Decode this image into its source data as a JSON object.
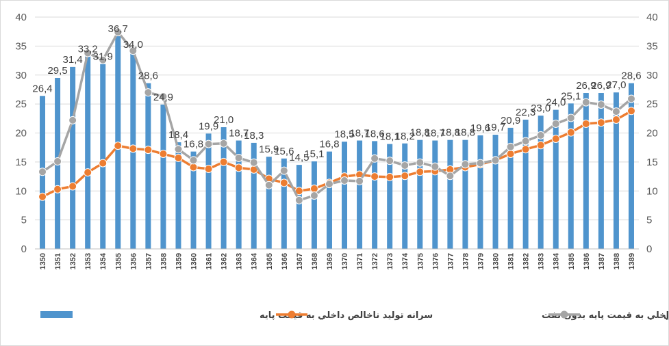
{
  "chart_data": {
    "type": "bar",
    "title": "",
    "xlabel": "",
    "ylabel": "",
    "ylim": [
      0,
      40
    ],
    "y_ticks": [
      "0",
      "5",
      "10",
      "15",
      "20",
      "25",
      "30",
      "35",
      "40"
    ],
    "right_axis": true,
    "grid": true,
    "legend_position": "bottom",
    "categories": [
      "1350",
      "1351",
      "1352",
      "1353",
      "1354",
      "1355",
      "1356",
      "1357",
      "1358",
      "1359",
      "1360",
      "1361",
      "1362",
      "1363",
      "1364",
      "1365",
      "1366",
      "1367",
      "1368",
      "1369",
      "1370",
      "1371",
      "1372",
      "1373",
      "1374",
      "1375",
      "1376",
      "1377",
      "1378",
      "1379",
      "1380",
      "1381",
      "1382",
      "1383",
      "1384",
      "1385",
      "1386",
      "1387",
      "1388",
      "1389"
    ],
    "series": [
      {
        "name": "سرانه توليد ناخالص داخلي به قيمت پايه",
        "type": "bar",
        "color": "#4f94cd",
        "values": [
          26.4,
          29.5,
          31.4,
          33.2,
          31.9,
          36.7,
          34.0,
          28.6,
          24.9,
          18.4,
          16.8,
          19.9,
          21.0,
          18.7,
          18.3,
          15.9,
          15.6,
          14.5,
          15.1,
          16.8,
          18.5,
          18.7,
          18.6,
          18.1,
          18.2,
          18.8,
          18.7,
          18.8,
          18.8,
          19.6,
          19.7,
          20.9,
          22.3,
          23.0,
          24.0,
          25.1,
          26.9,
          26.9,
          27.0,
          28.6
        ],
        "labels": [
          "26,4",
          "29,5",
          "31,4",
          "33,2",
          "31,9",
          "36,7",
          "34,0",
          "28,6",
          "24,9",
          "18,4",
          "16,8",
          "19,9",
          "21,0",
          "18,7",
          "18,3",
          "15,9",
          "15,6",
          "14,5",
          "15,1",
          "16,8",
          "18,5",
          "18,7",
          "18,6",
          "18,1",
          "18,2",
          "18,8",
          "18,7",
          "18,8",
          "18,8",
          "19,6",
          "19,7",
          "20,9",
          "22,3",
          "23,0",
          "24,0",
          "25,1",
          "26,9",
          "26,9",
          "27,0",
          "28,6"
        ]
      },
      {
        "name": "سرانه توليد ناخالص داخلي به قيمت پايه بدون نفت",
        "type": "line",
        "color": "#ed7d31",
        "values": [
          9.0,
          10.3,
          10.8,
          13.2,
          14.8,
          17.8,
          17.3,
          17.1,
          16.4,
          15.7,
          14.1,
          13.8,
          15.0,
          14.0,
          13.7,
          12.1,
          11.4,
          10.0,
          10.4,
          11.4,
          12.5,
          12.8,
          12.5,
          12.4,
          12.6,
          13.3,
          13.4,
          13.7,
          14.1,
          14.6,
          15.3,
          16.4,
          17.2,
          17.9,
          19.0,
          20.1,
          21.6,
          21.8,
          22.3,
          23.8
        ]
      },
      {
        "name": "سرانه  درآمد ملي",
        "type": "line",
        "color": "#a5a5a5",
        "values": [
          13.3,
          15.1,
          22.2,
          33.8,
          32.6,
          37.4,
          34.2,
          27.0,
          26.3,
          17.2,
          15.3,
          18.1,
          18.2,
          15.7,
          14.9,
          11.0,
          13.5,
          8.4,
          9.2,
          11.2,
          11.8,
          11.7,
          15.6,
          15.2,
          14.4,
          14.9,
          14.2,
          12.6,
          14.6,
          14.8,
          15.3,
          17.6,
          18.6,
          19.6,
          21.6,
          22.6,
          25.3,
          24.9,
          23.7,
          25.9
        ]
      }
    ]
  }
}
